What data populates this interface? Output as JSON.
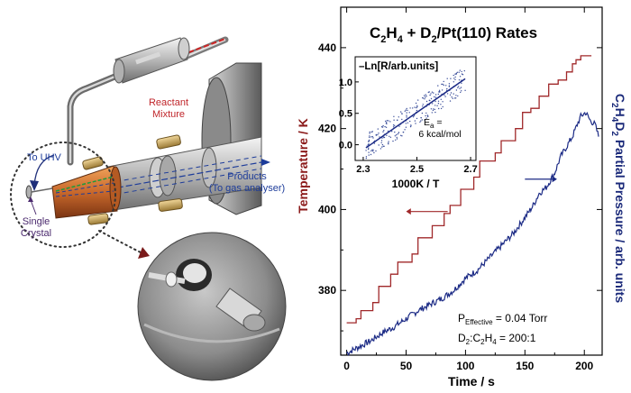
{
  "apparatus": {
    "reactant_label_line1": "Reactant",
    "reactant_label_line2": "Mixture",
    "products_label_line1": "Products",
    "products_label_line2": "(To gas analyser)",
    "uhv_label": "To UHV",
    "crystal_label_line1": "Single",
    "crystal_label_line2": "Crystal"
  },
  "colors": {
    "temperature": "#a0282a",
    "pressure": "#1b2a85",
    "reactant_red": "#c0262b",
    "products_blue": "#1d3c9a",
    "crystal_purple": "#4b2a6e"
  },
  "chart_data": [
    {
      "type": "line",
      "title_parts": [
        "C",
        "2",
        "H",
        "4",
        " + D",
        "2",
        "/Pt(110) Rates"
      ],
      "xlabel": "Time / s",
      "ylabel_left": "Temperature / K",
      "ylabel_right_parts": [
        "C",
        "2",
        "H",
        "4",
        "D",
        "2",
        " Partial Pressure / arb. units"
      ],
      "xlim": [
        -5,
        215
      ],
      "ylim_left": [
        364,
        450
      ],
      "xticks": [
        0,
        50,
        100,
        150,
        200
      ],
      "yticks_left": [
        380,
        400,
        420,
        440
      ],
      "annotation_line1_parts": [
        "P",
        "Effective",
        " = 0.04 Torr"
      ],
      "annotation_line2_parts": [
        "D",
        "2",
        ":C",
        "2",
        "H",
        "4",
        " = 200:1"
      ],
      "series": [
        {
          "name": "Temperature",
          "axis": "left",
          "style": "step",
          "points": [
            [
              0,
              372
            ],
            [
              8,
              372
            ],
            [
              8,
              373
            ],
            [
              12,
              373
            ],
            [
              12,
              375
            ],
            [
              22,
              375
            ],
            [
              22,
              377
            ],
            [
              27,
              377
            ],
            [
              27,
              381
            ],
            [
              37,
              381
            ],
            [
              37,
              384
            ],
            [
              43,
              384
            ],
            [
              43,
              387
            ],
            [
              55,
              387
            ],
            [
              55,
              389
            ],
            [
              60,
              389
            ],
            [
              60,
              393
            ],
            [
              72,
              393
            ],
            [
              72,
              396
            ],
            [
              82,
              396
            ],
            [
              82,
              399
            ],
            [
              87,
              399
            ],
            [
              87,
              401
            ],
            [
              96,
              401
            ],
            [
              96,
              405
            ],
            [
              107,
              405
            ],
            [
              107,
              408
            ],
            [
              112,
              408
            ],
            [
              112,
              412
            ],
            [
              125,
              412
            ],
            [
              125,
              414
            ],
            [
              130,
              414
            ],
            [
              130,
              417
            ],
            [
              142,
              417
            ],
            [
              142,
              420
            ],
            [
              148,
              420
            ],
            [
              148,
              424
            ],
            [
              155,
              424
            ],
            [
              155,
              425
            ],
            [
              162,
              425
            ],
            [
              162,
              428
            ],
            [
              170,
              428
            ],
            [
              170,
              431
            ],
            [
              178,
              431
            ],
            [
              178,
              432
            ],
            [
              185,
              432
            ],
            [
              185,
              434
            ],
            [
              190,
              434
            ],
            [
              190,
              436
            ],
            [
              193,
              436
            ],
            [
              193,
              437
            ],
            [
              197,
              437
            ],
            [
              197,
              438
            ],
            [
              206,
              438
            ]
          ]
        },
        {
          "name": "C2H4D2 Partial Pressure",
          "axis": "right",
          "style": "noisy",
          "points_left_scale": [
            [
              0,
              364.5
            ],
            [
              10,
              366
            ],
            [
              20,
              367.5
            ],
            [
              30,
              369.5
            ],
            [
              40,
              371
            ],
            [
              50,
              373
            ],
            [
              60,
              375
            ],
            [
              70,
              376.5
            ],
            [
              80,
              378
            ],
            [
              90,
              380
            ],
            [
              100,
              383
            ],
            [
              110,
              385
            ],
            [
              120,
              388
            ],
            [
              130,
              391
            ],
            [
              140,
              394
            ],
            [
              150,
              398
            ],
            [
              157,
              401
            ],
            [
              162,
              404
            ],
            [
              168,
              405.5
            ],
            [
              175,
              409
            ],
            [
              180,
              413
            ],
            [
              185,
              415.5
            ],
            [
              190,
              418
            ],
            [
              194,
              421
            ],
            [
              197,
              423
            ],
            [
              201,
              424
            ],
            [
              205,
              422
            ],
            [
              209,
              421
            ],
            [
              212,
              418
            ]
          ]
        }
      ]
    },
    {
      "type": "scatter",
      "title": "–Ln[R/arb.units]",
      "xlabel": "1000K / T",
      "xlim": [
        2.27,
        2.72
      ],
      "ylim": [
        -0.25,
        1.4
      ],
      "xticks": [
        2.3,
        2.5,
        2.7
      ],
      "yticks": [
        0.0,
        0.5,
        1.0
      ],
      "ytick_labels": [
        "0.0",
        "0.5",
        "1.0"
      ],
      "fit_line": [
        [
          2.31,
          -0.05
        ],
        [
          2.68,
          1.05
        ]
      ],
      "annotation_line1_parts": [
        "E",
        "a",
        " ="
      ],
      "annotation_line2": "6 kcal/mol"
    }
  ]
}
